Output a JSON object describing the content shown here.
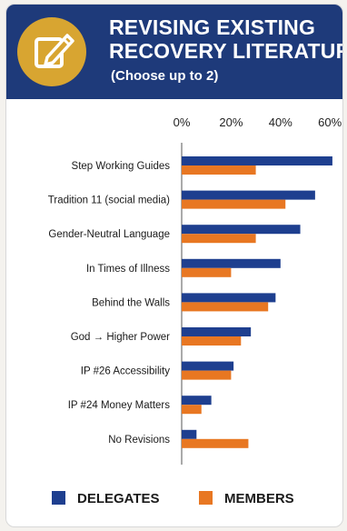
{
  "header": {
    "title_line1": "REVISING EXISTING",
    "title_line2": "RECOVERY LITERATURE",
    "subtitle": "(Choose up to 2)",
    "icon": "pencil-on-notepad-icon"
  },
  "colors": {
    "header_bg": "#1e3a7a",
    "icon_bg": "#d8a531",
    "delegates": "#1e3f8f",
    "members": "#e87722"
  },
  "chart_data": {
    "type": "bar",
    "orientation": "horizontal",
    "categories": [
      "Step Working Guides",
      "Tradition 11 (social media)",
      "Gender-Neutral Language",
      "In Times of Illness",
      "Behind the Walls",
      "God → Higher Power",
      "IP #26 Accessibility",
      "IP #24 Money Matters",
      "No Revisions"
    ],
    "series": [
      {
        "name": "DELEGATES",
        "values": [
          61,
          54,
          48,
          40,
          38,
          28,
          21,
          12,
          6
        ]
      },
      {
        "name": "MEMBERS",
        "values": [
          30,
          42,
          30,
          20,
          35,
          24,
          20,
          8,
          27
        ]
      }
    ],
    "x_ticks": [
      "0%",
      "20%",
      "40%",
      "60%"
    ],
    "xlim": [
      0,
      60
    ],
    "x_axis_position": "top",
    "legend_position": "bottom",
    "grid": false
  }
}
